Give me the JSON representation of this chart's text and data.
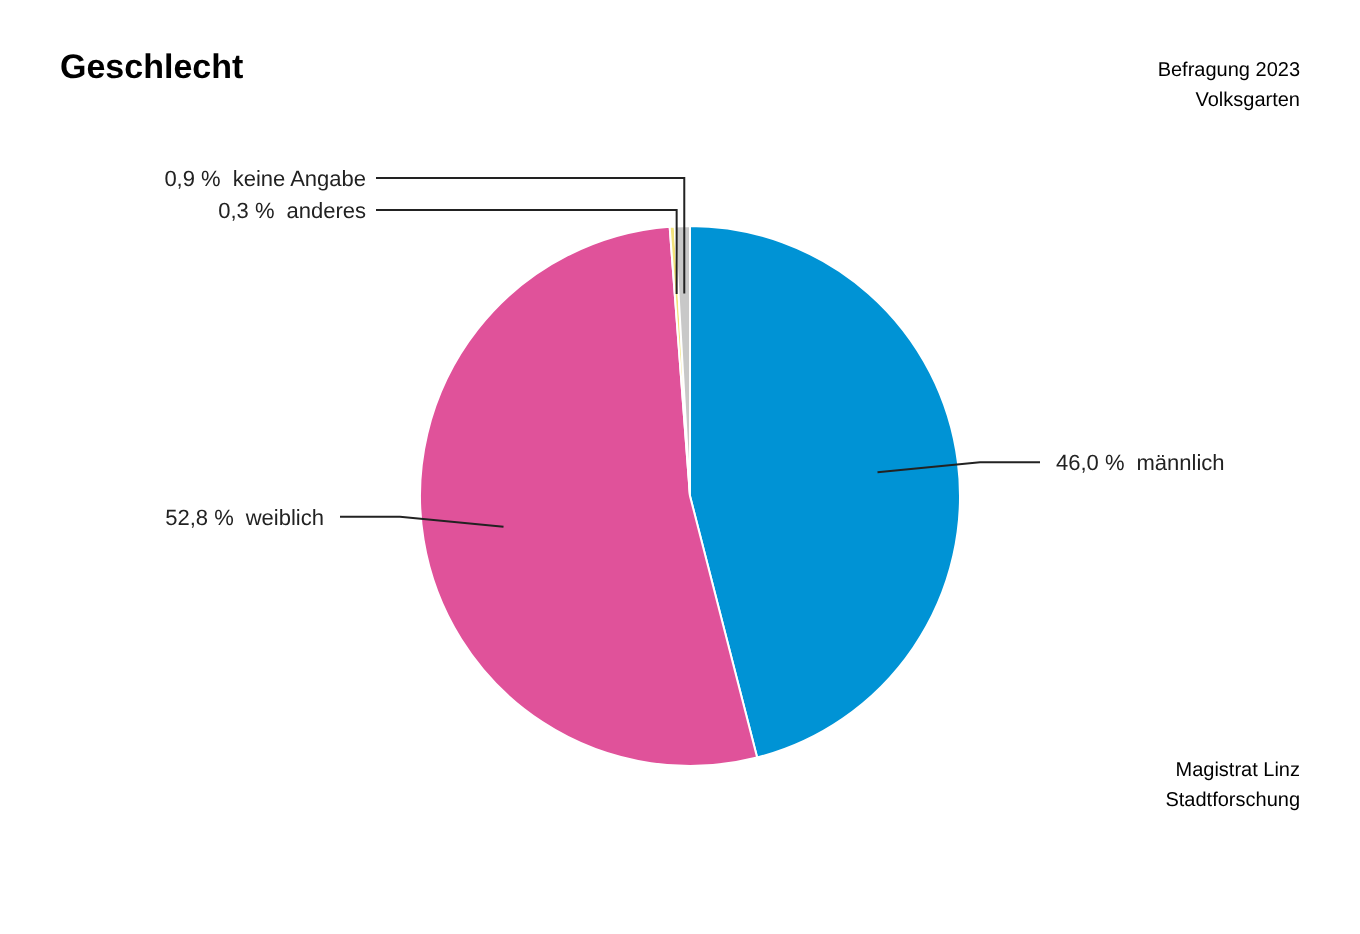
{
  "chart_data": {
    "type": "pie",
    "title": "Geschlecht",
    "categories": [
      "männlich",
      "weiblich",
      "anderes",
      "keine Angabe"
    ],
    "values": [
      46.0,
      52.8,
      0.3,
      0.9
    ],
    "colors": [
      "#0093d5",
      "#e0529a",
      "#f2e27a",
      "#c8c8c8"
    ],
    "value_labels": [
      "46,0 %",
      "52,8 %",
      "0,3 %",
      "0,9 %"
    ],
    "legend": false,
    "annotations": [
      "Befragung 2023",
      "Volksgarten",
      "Magistrat Linz",
      "Stadtforschung"
    ]
  }
}
